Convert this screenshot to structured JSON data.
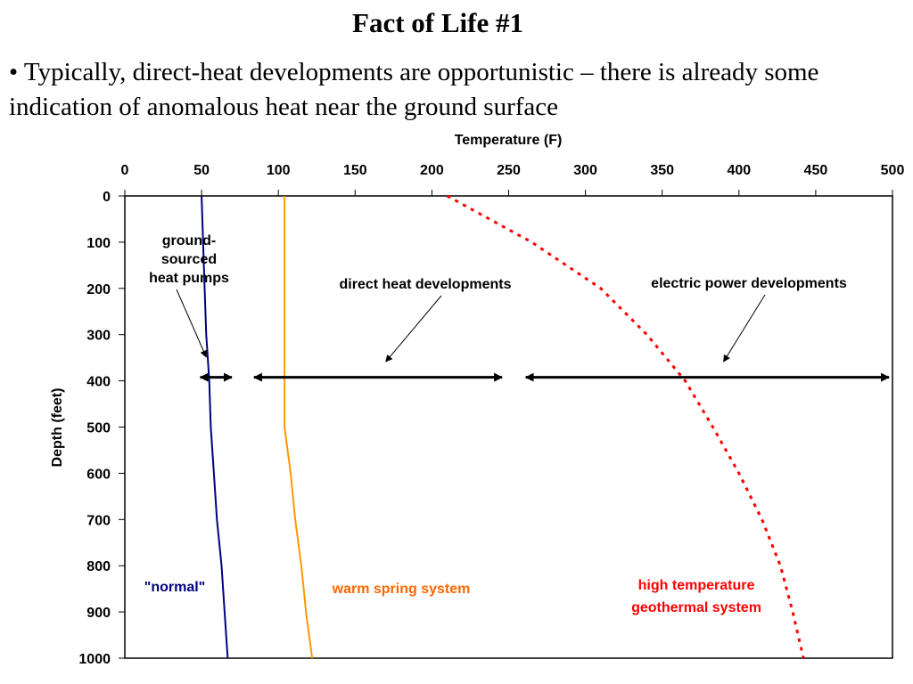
{
  "slide": {
    "title": "Fact of Life #1",
    "bullet": "•  Typically, direct-heat developments are opportunistic – there is already some indication of anomalous heat near the ground surface"
  },
  "chart_data": {
    "type": "line",
    "xlabel": "Temperature (F)",
    "ylabel": "Depth (feet)",
    "xlim": [
      0,
      500
    ],
    "ylim": [
      0,
      1000
    ],
    "y_inverted": true,
    "x_axis_position": "top",
    "x_ticks": [
      "0",
      "50",
      "100",
      "150",
      "200",
      "250",
      "300",
      "350",
      "400",
      "450",
      "500"
    ],
    "y_ticks": [
      "0",
      "100",
      "200",
      "300",
      "400",
      "500",
      "600",
      "700",
      "800",
      "900",
      "1000"
    ],
    "grid": false,
    "series": [
      {
        "name": "\"normal\"",
        "color": "#000080",
        "style": "solid",
        "points": [
          [
            50,
            0
          ],
          [
            51,
            100
          ],
          [
            52,
            200
          ],
          [
            53,
            300
          ],
          [
            55,
            400
          ],
          [
            56,
            500
          ],
          [
            58,
            600
          ],
          [
            60,
            700
          ],
          [
            63,
            800
          ],
          [
            65,
            900
          ],
          [
            67,
            1000
          ]
        ]
      },
      {
        "name": "warm spring system",
        "color": "#ff9900",
        "style": "solid",
        "points": [
          [
            104,
            0
          ],
          [
            104,
            100
          ],
          [
            104,
            200
          ],
          [
            104,
            300
          ],
          [
            104,
            400
          ],
          [
            104,
            500
          ],
          [
            108,
            600
          ],
          [
            111,
            700
          ],
          [
            115,
            800
          ],
          [
            118,
            900
          ],
          [
            122,
            1000
          ]
        ]
      },
      {
        "name": "high temperature geothermal system",
        "color": "#ff0000",
        "style": "dotted",
        "points": [
          [
            210,
            0
          ],
          [
            265,
            100
          ],
          [
            310,
            200
          ],
          [
            340,
            300
          ],
          [
            365,
            400
          ],
          [
            383,
            500
          ],
          [
            400,
            600
          ],
          [
            415,
            700
          ],
          [
            427,
            800
          ],
          [
            435,
            900
          ],
          [
            442,
            1000
          ]
        ]
      }
    ],
    "range_arrows": [
      {
        "label_lines": [
          "ground-",
          "sourced",
          "heat pumps"
        ],
        "from": 48,
        "to": 72,
        "depth": 350,
        "pointer_tip": [
          53,
          335
        ]
      },
      {
        "label_lines": [
          "direct heat developments"
        ],
        "from": 83,
        "to": 248,
        "depth": 350,
        "pointer_tip": [
          170,
          345
        ]
      },
      {
        "label_lines": [
          "electric power developments"
        ],
        "from": 260,
        "to": 500,
        "depth": 350,
        "pointer_tip": [
          390,
          345
        ]
      }
    ],
    "annotations": [
      {
        "label_lines": [
          "\"normal\""
        ],
        "color": "#000080"
      },
      {
        "label_lines": [
          "warm spring system"
        ],
        "color": "#ff6600"
      },
      {
        "label_lines": [
          "high temperature",
          "geothermal system"
        ],
        "color": "#ff0000"
      }
    ]
  }
}
